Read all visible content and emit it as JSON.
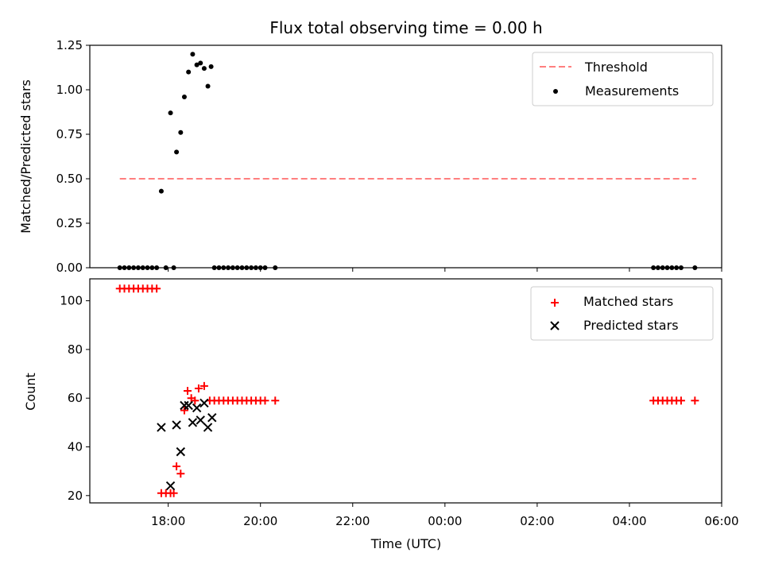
{
  "chart_data": [
    {
      "type": "scatter",
      "title": "Flux total observing time = 0.00 h",
      "xlabel": "",
      "ylabel": "Matched/Predicted stars",
      "ylim": [
        0,
        1.25
      ],
      "yticks": [
        "0.00",
        "0.25",
        "0.50",
        "0.75",
        "1.00",
        "1.25"
      ],
      "legend": {
        "position": "top-right",
        "entries": [
          "Threshold",
          "Measurements"
        ]
      },
      "threshold": {
        "name": "Threshold",
        "value": 0.5,
        "x_start": 16.95,
        "x_end": 29.45,
        "color": "#ff7f7f"
      },
      "series": [
        {
          "name": "Measurements",
          "color": "#000000",
          "points": [
            [
              16.95,
              0
            ],
            [
              17.05,
              0
            ],
            [
              17.15,
              0
            ],
            [
              17.25,
              0
            ],
            [
              17.35,
              0
            ],
            [
              17.45,
              0
            ],
            [
              17.55,
              0
            ],
            [
              17.65,
              0
            ],
            [
              17.75,
              0
            ],
            [
              17.85,
              0.43
            ],
            [
              17.95,
              0
            ],
            [
              18.05,
              0.87
            ],
            [
              18.12,
              0
            ],
            [
              18.18,
              0.65
            ],
            [
              18.27,
              0.76
            ],
            [
              18.35,
              0.96
            ],
            [
              18.44,
              1.1
            ],
            [
              18.53,
              1.2
            ],
            [
              18.62,
              1.14
            ],
            [
              18.7,
              1.15
            ],
            [
              18.78,
              1.12
            ],
            [
              18.86,
              1.02
            ],
            [
              18.93,
              1.13
            ],
            [
              19.0,
              0
            ],
            [
              19.1,
              0
            ],
            [
              19.2,
              0
            ],
            [
              19.3,
              0
            ],
            [
              19.4,
              0
            ],
            [
              19.5,
              0
            ],
            [
              19.6,
              0
            ],
            [
              19.7,
              0
            ],
            [
              19.8,
              0
            ],
            [
              19.9,
              0
            ],
            [
              20.0,
              0
            ],
            [
              20.1,
              0
            ],
            [
              20.32,
              0
            ],
            [
              28.52,
              0
            ],
            [
              28.62,
              0
            ],
            [
              28.72,
              0
            ],
            [
              28.82,
              0
            ],
            [
              28.92,
              0
            ],
            [
              29.02,
              0
            ],
            [
              29.12,
              0
            ],
            [
              29.42,
              0
            ]
          ]
        }
      ]
    },
    {
      "type": "scatter",
      "title": "",
      "xlabel": "Time (UTC)",
      "ylabel": "Count",
      "ylim": [
        17,
        109
      ],
      "yticks": [
        "20",
        "40",
        "60",
        "80",
        "100"
      ],
      "xlim": [
        16.3,
        30.0
      ],
      "xticks": [
        "18:00",
        "20:00",
        "22:00",
        "00:00",
        "02:00",
        "04:00",
        "06:00"
      ],
      "legend": {
        "position": "top-right",
        "entries": [
          "Matched stars",
          "Predicted stars"
        ]
      },
      "series": [
        {
          "name": "Matched stars",
          "marker": "plus",
          "color": "#ff0000",
          "points": [
            [
              16.95,
              105
            ],
            [
              17.05,
              105
            ],
            [
              17.15,
              105
            ],
            [
              17.25,
              105
            ],
            [
              17.35,
              105
            ],
            [
              17.45,
              105
            ],
            [
              17.55,
              105
            ],
            [
              17.65,
              105
            ],
            [
              17.75,
              105
            ],
            [
              17.85,
              21
            ],
            [
              17.95,
              21
            ],
            [
              18.05,
              21
            ],
            [
              18.12,
              21
            ],
            [
              18.18,
              32
            ],
            [
              18.27,
              29
            ],
            [
              18.35,
              55
            ],
            [
              18.42,
              63
            ],
            [
              18.5,
              60
            ],
            [
              18.58,
              59
            ],
            [
              18.66,
              64
            ],
            [
              18.78,
              65
            ],
            [
              18.9,
              59
            ],
            [
              19.0,
              59
            ],
            [
              19.1,
              59
            ],
            [
              19.2,
              59
            ],
            [
              19.3,
              59
            ],
            [
              19.4,
              59
            ],
            [
              19.5,
              59
            ],
            [
              19.6,
              59
            ],
            [
              19.7,
              59
            ],
            [
              19.8,
              59
            ],
            [
              19.9,
              59
            ],
            [
              20.0,
              59
            ],
            [
              20.1,
              59
            ],
            [
              20.32,
              59
            ],
            [
              28.52,
              59
            ],
            [
              28.62,
              59
            ],
            [
              28.72,
              59
            ],
            [
              28.82,
              59
            ],
            [
              28.92,
              59
            ],
            [
              29.02,
              59
            ],
            [
              29.12,
              59
            ],
            [
              29.42,
              59
            ]
          ]
        },
        {
          "name": "Predicted stars",
          "marker": "x",
          "color": "#000000",
          "points": [
            [
              17.85,
              48
            ],
            [
              18.05,
              24
            ],
            [
              18.18,
              49
            ],
            [
              18.27,
              38
            ],
            [
              18.35,
              57
            ],
            [
              18.44,
              57
            ],
            [
              18.53,
              50
            ],
            [
              18.62,
              56
            ],
            [
              18.7,
              51
            ],
            [
              18.78,
              58
            ],
            [
              18.86,
              48
            ],
            [
              18.95,
              52
            ]
          ]
        }
      ]
    }
  ]
}
